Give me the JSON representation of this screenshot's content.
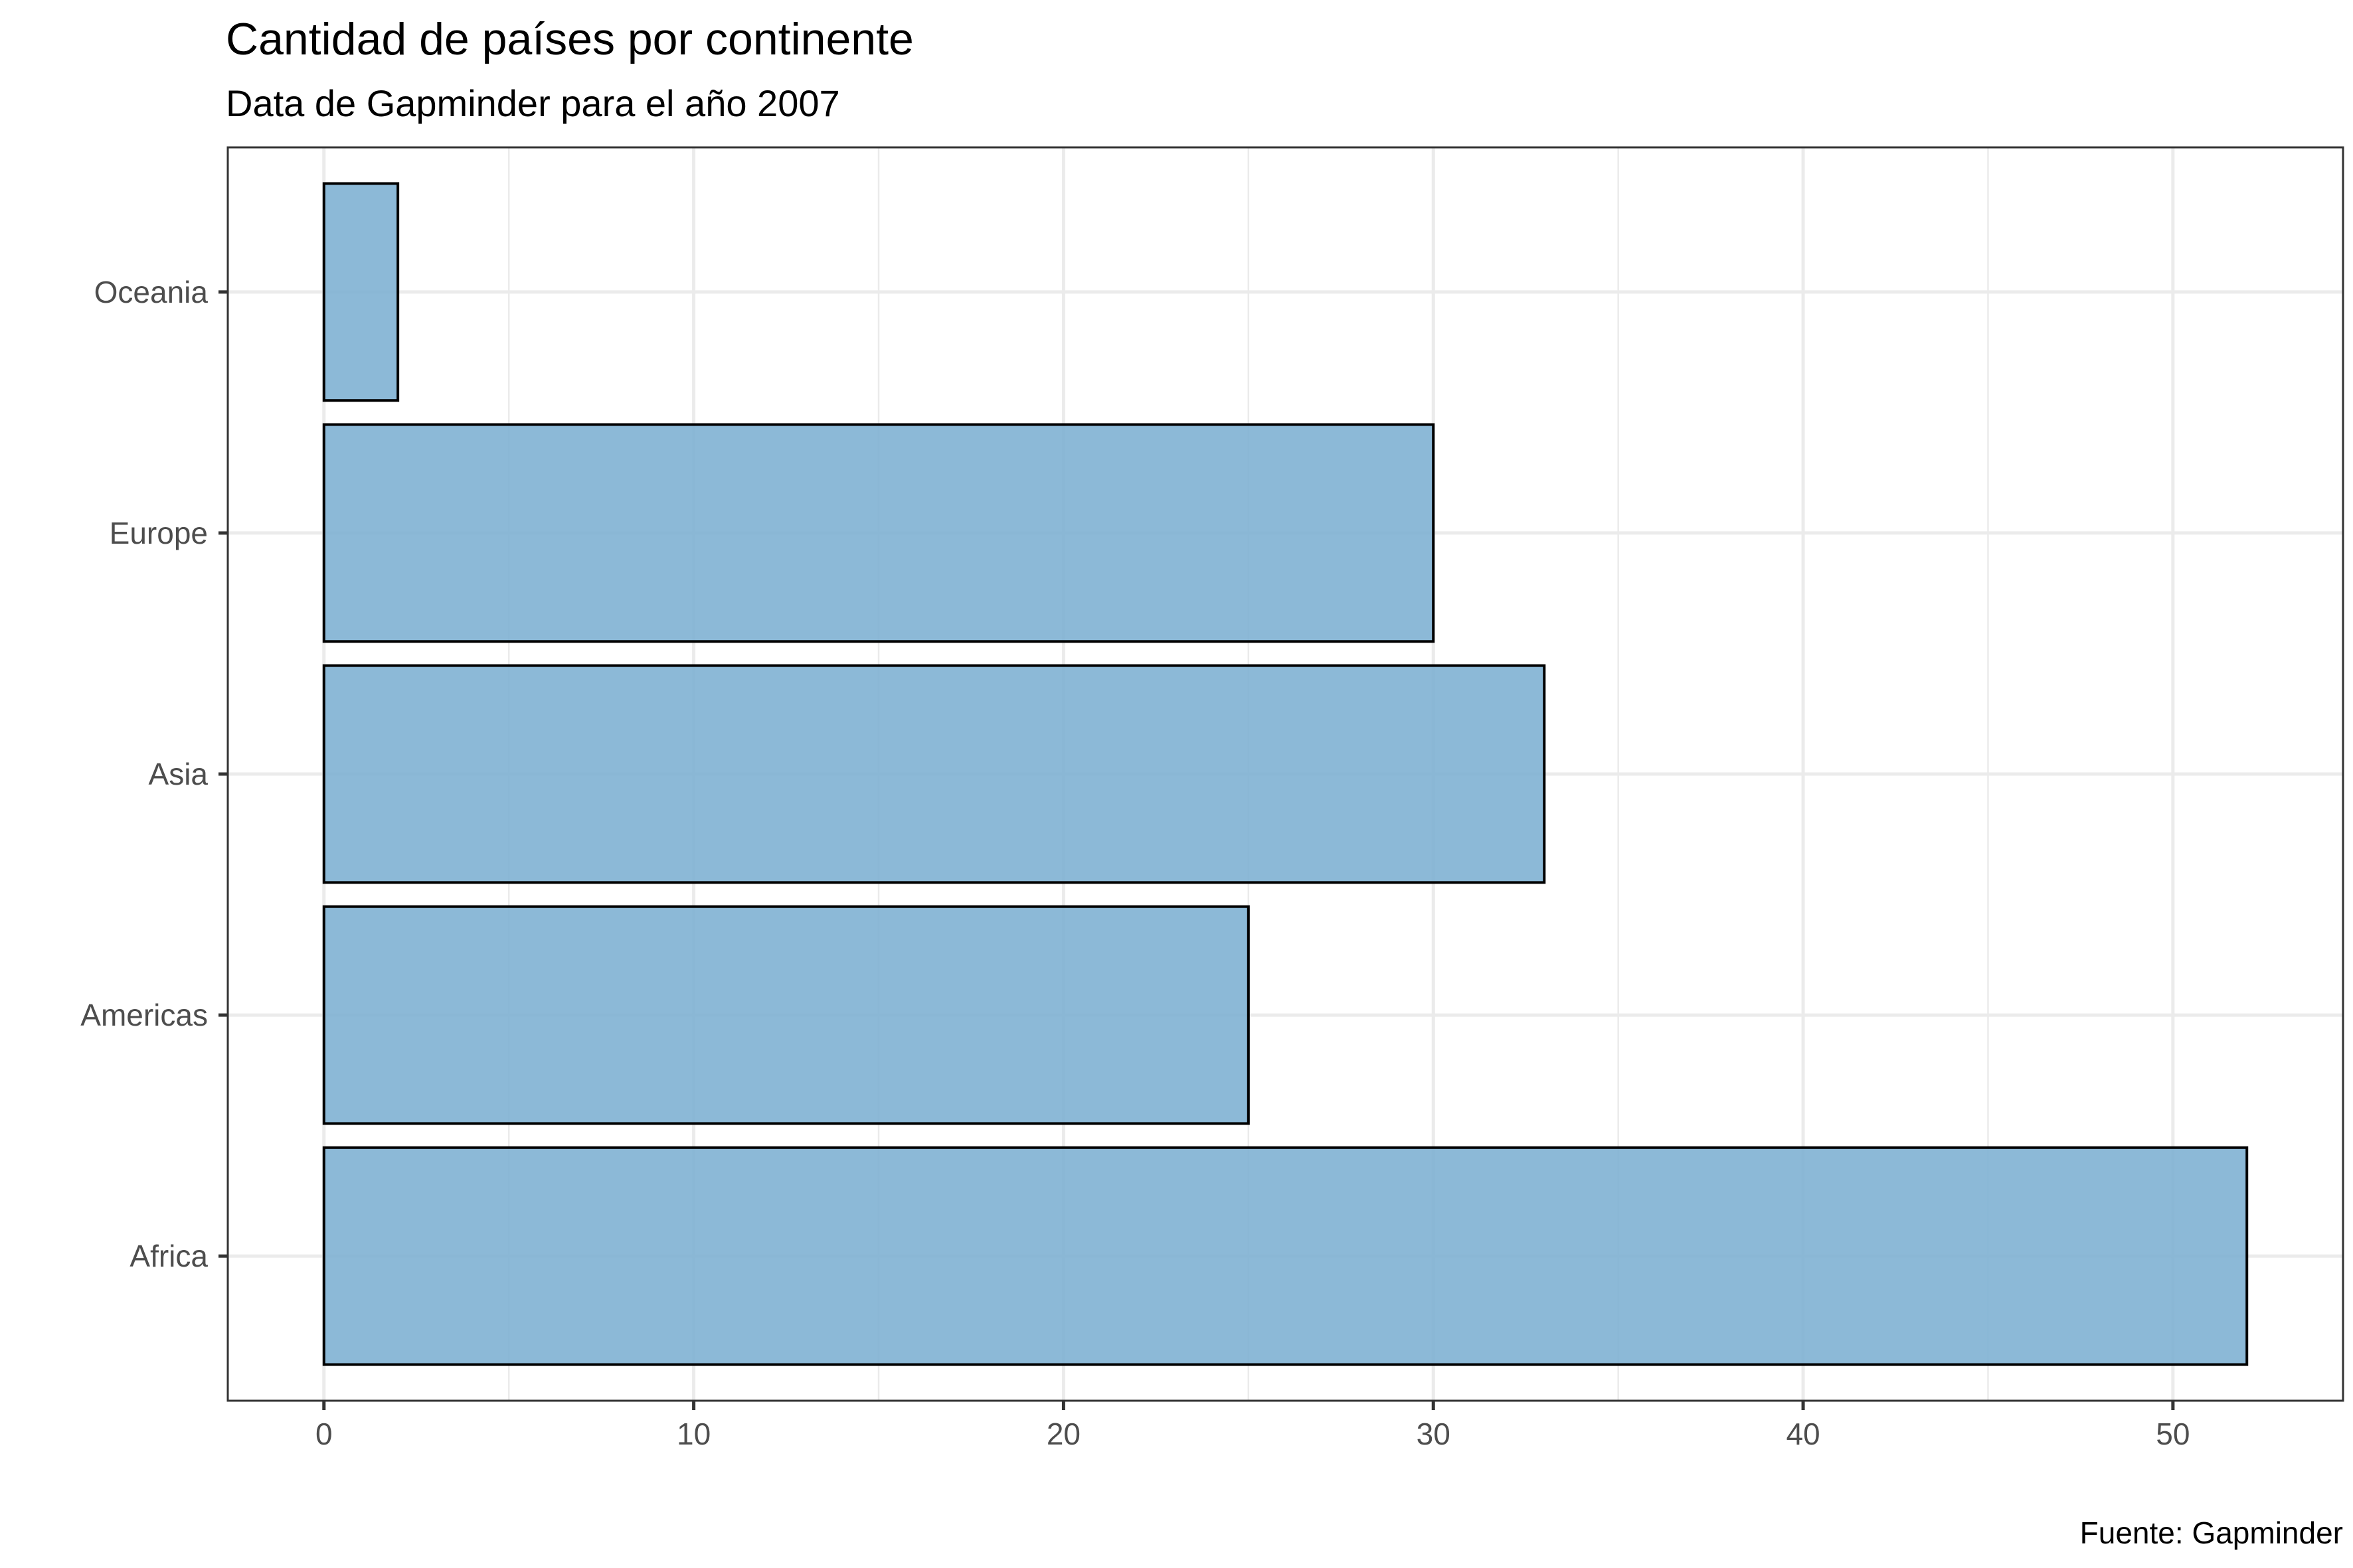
{
  "chart_data": {
    "type": "bar",
    "orientation": "horizontal",
    "title": "Cantidad de países por continente",
    "subtitle": "Data de Gapminder para el año 2007",
    "caption": "Fuente: Gapminder",
    "xlabel": "",
    "ylabel": "",
    "categories": [
      "Africa",
      "Americas",
      "Asia",
      "Europe",
      "Oceania"
    ],
    "values": [
      52,
      25,
      33,
      30,
      2
    ],
    "xlim": [
      -2.6,
      54.6
    ],
    "x_ticks": [
      0,
      10,
      20,
      30,
      40,
      50
    ],
    "x_tick_labels": [
      "0",
      "10",
      "20",
      "30",
      "40",
      "50"
    ],
    "x_minor_ticks": [
      5,
      15,
      25,
      35,
      45
    ],
    "grid": true,
    "legend": "none",
    "colors": {
      "bar_fill": "#7fb1d3",
      "bar_fill_opacity": 0.9,
      "bar_stroke": "#000000",
      "grid": "#ebebeb",
      "panel_border": "#333333",
      "tick_text": "#4d4d4d",
      "title_text": "#000000"
    }
  }
}
